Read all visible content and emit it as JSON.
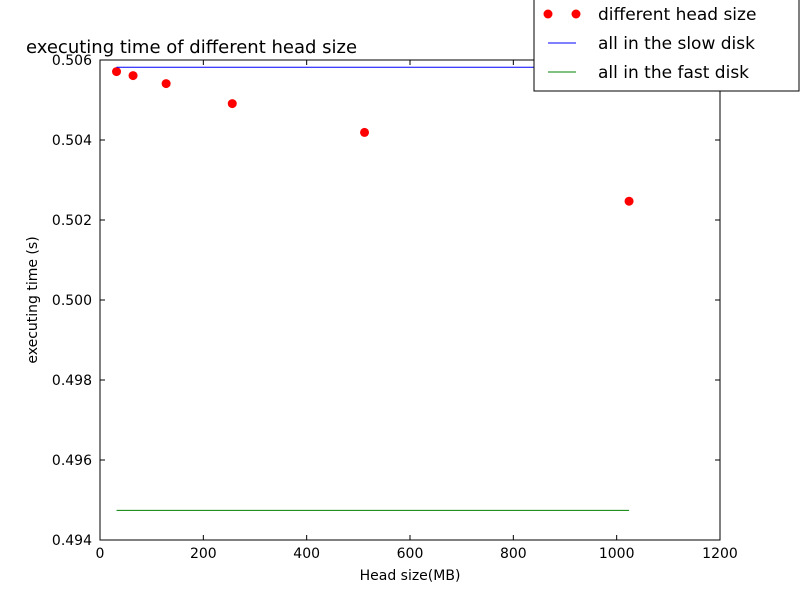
{
  "chart_data": {
    "type": "scatter",
    "title": "executing time of different head size",
    "xlabel": "Head size(MB)",
    "ylabel": "executing time (s)",
    "xlim": [
      0,
      1200
    ],
    "ylim": [
      0.494,
      0.506
    ],
    "xticks": [
      0,
      200,
      400,
      600,
      800,
      1000,
      1200
    ],
    "yticks": [
      0.494,
      0.496,
      0.498,
      0.5,
      0.502,
      0.504,
      0.506
    ],
    "ytick_labels": [
      "0.494",
      "0.496",
      "0.498",
      "0.500",
      "0.502",
      "0.504",
      "0.506"
    ],
    "grid": false,
    "legend_position": "top-right",
    "series": [
      {
        "name": "different head size",
        "kind": "points",
        "color": "#ff0000",
        "x": [
          32,
          64,
          128,
          256,
          512,
          1024
        ],
        "y": [
          0.50571,
          0.50561,
          0.50541,
          0.50491,
          0.50419,
          0.50247
        ]
      },
      {
        "name": "all in the slow disk",
        "kind": "line",
        "color": "#0000ff",
        "x": [
          32,
          64,
          128,
          256,
          512,
          1024
        ],
        "y": [
          0.50582,
          0.50582,
          0.50582,
          0.50582,
          0.50582,
          0.50582
        ]
      },
      {
        "name": "all in the fast disk",
        "kind": "line",
        "color": "#008000",
        "x": [
          32,
          64,
          128,
          256,
          512,
          1024
        ],
        "y": [
          0.49474,
          0.49474,
          0.49474,
          0.49474,
          0.49474,
          0.49474
        ]
      }
    ]
  }
}
